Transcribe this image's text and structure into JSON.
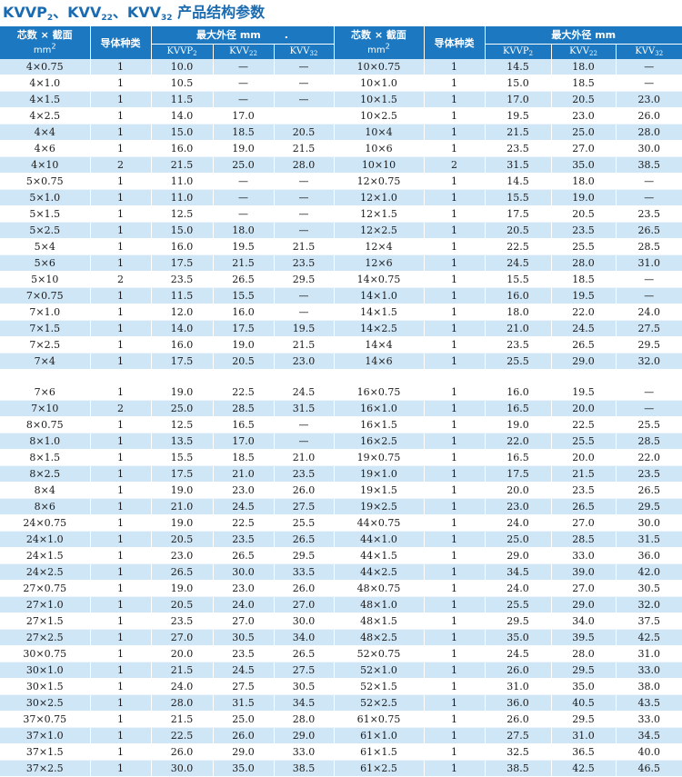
{
  "title": {
    "p1": "KVVP",
    "s1": "2",
    "p2": "、KVV",
    "s2": "22",
    "p3": "、KVV",
    "s3": "32",
    "p4": " 产品结构参数"
  },
  "header": {
    "size_label": "芯数 × 截面",
    "size_unit": "mm",
    "size_unit_sup": "2",
    "conductor": "导体种类",
    "max_od": "最大外径 mm",
    "max_od_mark": ".",
    "kvvp": "KVVP",
    "kvvp_sub": "2",
    "kvv22": "KVV",
    "kvv22_sub": "22",
    "kvv32": "KVV",
    "kvv32_sub": "32"
  },
  "colors": {
    "header_bg": "#1c78c0",
    "stripe": "#cfe6f7",
    "title": "#1a6bb0"
  },
  "rows_top": [
    [
      "4×0.75",
      "1",
      "10.0",
      "—",
      "—",
      "10×0.75",
      "1",
      "14.5",
      "18.0",
      "—"
    ],
    [
      "4×1.0",
      "1",
      "10.5",
      "—",
      "—",
      "10×1.0",
      "1",
      "15.0",
      "18.5",
      "—"
    ],
    [
      "4×1.5",
      "1",
      "11.5",
      "—",
      "—",
      "10×1.5",
      "1",
      "17.0",
      "20.5",
      "23.0"
    ],
    [
      "4×2.5",
      "1",
      "14.0",
      "17.0",
      "",
      "10×2.5",
      "1",
      "19.5",
      "23.0",
      "26.0"
    ],
    [
      "4×4",
      "1",
      "15.0",
      "18.5",
      "20.5",
      "10×4",
      "1",
      "21.5",
      "25.0",
      "28.0"
    ],
    [
      "4×6",
      "1",
      "16.0",
      "19.0",
      "21.5",
      "10×6",
      "1",
      "23.5",
      "27.0",
      "30.0"
    ],
    [
      "4×10",
      "2",
      "21.5",
      "25.0",
      "28.0",
      "10×10",
      "2",
      "31.5",
      "35.0",
      "38.5"
    ],
    [
      "5×0.75",
      "1",
      "11.0",
      "—",
      "—",
      "12×0.75",
      "1",
      "14.5",
      "18.0",
      "—"
    ],
    [
      "5×1.0",
      "1",
      "11.0",
      "—",
      "—",
      "12×1.0",
      "1",
      "15.5",
      "19.0",
      "—"
    ],
    [
      "5×1.5",
      "1",
      "12.5",
      "—",
      "—",
      "12×1.5",
      "1",
      "17.5",
      "20.5",
      "23.5"
    ],
    [
      "5×2.5",
      "1",
      "15.0",
      "18.0",
      "—",
      "12×2.5",
      "1",
      "20.5",
      "23.5",
      "26.5"
    ],
    [
      "5×4",
      "1",
      "16.0",
      "19.5",
      "21.5",
      "12×4",
      "1",
      "22.5",
      "25.5",
      "28.5"
    ],
    [
      "5×6",
      "1",
      "17.5",
      "21.5",
      "23.5",
      "12×6",
      "1",
      "24.5",
      "28.0",
      "31.0"
    ],
    [
      "5×10",
      "2",
      "23.5",
      "26.5",
      "29.5",
      "14×0.75",
      "1",
      "15.5",
      "18.5",
      "—"
    ],
    [
      "7×0.75",
      "1",
      "11.5",
      "15.5",
      "—",
      "14×1.0",
      "1",
      "16.0",
      "19.5",
      "—"
    ],
    [
      "7×1.0",
      "1",
      "12.0",
      "16.0",
      "—",
      "14×1.5",
      "1",
      "18.0",
      "22.0",
      "24.0"
    ],
    [
      "7×1.5",
      "1",
      "14.0",
      "17.5",
      "19.5",
      "14×2.5",
      "1",
      "21.0",
      "24.5",
      "27.5"
    ],
    [
      "7×2.5",
      "1",
      "16.0",
      "19.0",
      "21.5",
      "14×4",
      "1",
      "23.5",
      "26.5",
      "29.5"
    ],
    [
      "7×4",
      "1",
      "17.5",
      "20.5",
      "23.0",
      "14×6",
      "1",
      "25.5",
      "29.0",
      "32.0"
    ]
  ],
  "rows_bottom": [
    [
      "7×6",
      "1",
      "19.0",
      "22.5",
      "24.5",
      "16×0.75",
      "1",
      "16.0",
      "19.5",
      "—"
    ],
    [
      "7×10",
      "2",
      "25.0",
      "28.5",
      "31.5",
      "16×1.0",
      "1",
      "16.5",
      "20.0",
      "—"
    ],
    [
      "8×0.75",
      "1",
      "12.5",
      "16.5",
      "—",
      "16×1.5",
      "1",
      "19.0",
      "22.5",
      "25.5"
    ],
    [
      "8×1.0",
      "1",
      "13.5",
      "17.0",
      "—",
      "16×2.5",
      "1",
      "22.0",
      "25.5",
      "28.5"
    ],
    [
      "8×1.5",
      "1",
      "15.5",
      "18.5",
      "21.0",
      "19×0.75",
      "1",
      "16.5",
      "20.0",
      "22.0"
    ],
    [
      "8×2.5",
      "1",
      "17.5",
      "21.0",
      "23.5",
      "19×1.0",
      "1",
      "17.5",
      "21.5",
      "23.5"
    ],
    [
      "8×4",
      "1",
      "19.0",
      "23.0",
      "26.0",
      "19×1.5",
      "1",
      "20.0",
      "23.5",
      "26.5"
    ],
    [
      "8×6",
      "1",
      "21.0",
      "24.5",
      "27.5",
      "19×2.5",
      "1",
      "23.0",
      "26.5",
      "29.5"
    ],
    [
      "24×0.75",
      "1",
      "19.0",
      "22.5",
      "25.5",
      "44×0.75",
      "1",
      "24.0",
      "27.0",
      "30.0"
    ],
    [
      "24×1.0",
      "1",
      "20.5",
      "23.5",
      "26.5",
      "44×1.0",
      "1",
      "25.0",
      "28.5",
      "31.5"
    ],
    [
      "24×1.5",
      "1",
      "23.0",
      "26.5",
      "29.5",
      "44×1.5",
      "1",
      "29.0",
      "33.0",
      "36.0"
    ],
    [
      "24×2.5",
      "1",
      "26.5",
      "30.0",
      "33.5",
      "44×2.5",
      "1",
      "34.5",
      "39.0",
      "42.0"
    ],
    [
      "27×0.75",
      "1",
      "19.0",
      "23.0",
      "26.0",
      "48×0.75",
      "1",
      "24.0",
      "27.0",
      "30.5"
    ],
    [
      "27×1.0",
      "1",
      "20.5",
      "24.0",
      "27.0",
      "48×1.0",
      "1",
      "25.5",
      "29.0",
      "32.0"
    ],
    [
      "27×1.5",
      "1",
      "23.5",
      "27.0",
      "30.0",
      "48×1.5",
      "1",
      "29.5",
      "34.0",
      "37.5"
    ],
    [
      "27×2.5",
      "1",
      "27.0",
      "30.5",
      "34.0",
      "48×2.5",
      "1",
      "35.0",
      "39.5",
      "42.5"
    ],
    [
      "30×0.75",
      "1",
      "20.0",
      "23.5",
      "26.5",
      "52×0.75",
      "1",
      "24.5",
      "28.0",
      "31.0"
    ],
    [
      "30×1.0",
      "1",
      "21.5",
      "24.5",
      "27.5",
      "52×1.0",
      "1",
      "26.0",
      "29.5",
      "33.0"
    ],
    [
      "30×1.5",
      "1",
      "24.0",
      "27.5",
      "30.5",
      "52×1.5",
      "1",
      "31.0",
      "35.0",
      "38.0"
    ],
    [
      "30×2.5",
      "1",
      "28.0",
      "31.5",
      "34.5",
      "52×2.5",
      "1",
      "36.0",
      "40.5",
      "43.5"
    ],
    [
      "37×0.75",
      "1",
      "21.5",
      "25.0",
      "28.0",
      "61×0.75",
      "1",
      "26.0",
      "29.5",
      "33.0"
    ],
    [
      "37×1.0",
      "1",
      "22.5",
      "26.0",
      "29.0",
      "61×1.0",
      "1",
      "27.5",
      "31.0",
      "34.5"
    ],
    [
      "37×1.5",
      "1",
      "26.0",
      "29.0",
      "33.0",
      "61×1.5",
      "1",
      "32.5",
      "36.5",
      "40.0"
    ],
    [
      "37×2.5",
      "1",
      "30.0",
      "35.0",
      "38.5",
      "61×2.5",
      "1",
      "38.5",
      "42.5",
      "46.5"
    ]
  ]
}
